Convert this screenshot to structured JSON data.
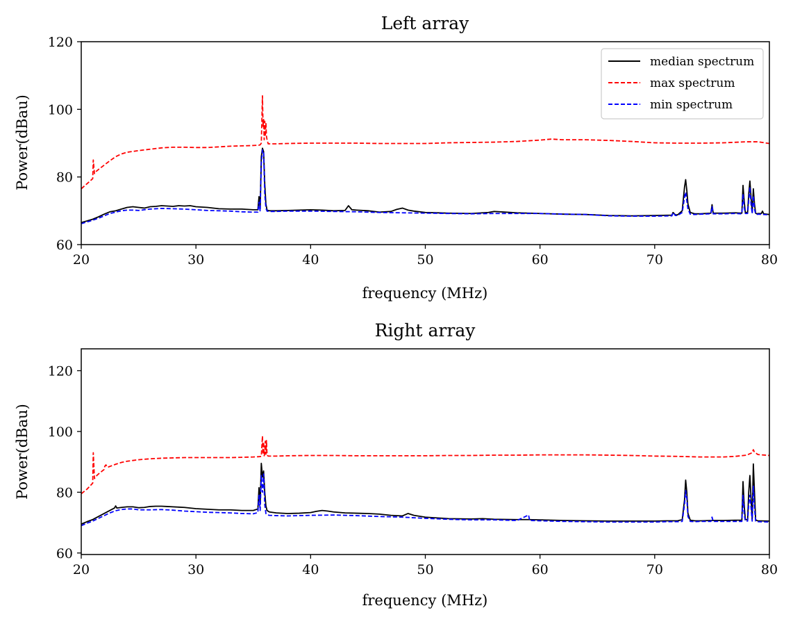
{
  "chart_data": [
    {
      "type": "line",
      "title": "Left array",
      "xlabel": "frequency (MHz)",
      "ylabel": "Power(dBau)",
      "xlim": [
        20,
        80
      ],
      "ylim": [
        60,
        120
      ],
      "xticks": [
        "20",
        "30",
        "40",
        "50",
        "60",
        "70",
        "80"
      ],
      "yticks": [
        "60",
        "80",
        "100",
        "120"
      ],
      "grid": false,
      "legend": "top-right",
      "series": [
        {
          "name": "median spectrum",
          "color": "#000000",
          "style": "solid",
          "x": [
            20,
            20.5,
            21,
            21.5,
            22,
            22.5,
            23,
            23.5,
            24,
            24.5,
            25,
            25.5,
            26,
            26.5,
            27,
            27.5,
            28,
            28.5,
            29,
            29.5,
            30,
            31,
            32,
            33,
            34,
            35,
            35.4,
            35.5,
            35.6,
            35.7,
            35.8,
            35.9,
            36,
            36.1,
            36.2,
            36.4,
            37,
            38,
            39,
            40,
            41,
            42,
            43,
            43.3,
            43.6,
            44,
            45,
            46,
            47,
            47.5,
            48,
            48.5,
            49,
            50,
            52,
            54,
            55.5,
            56,
            58,
            59,
            60,
            62,
            64,
            66,
            68,
            70,
            71.5,
            71.6,
            71.8,
            72,
            72.4,
            72.6,
            72.7,
            72.8,
            72.9,
            73.1,
            73.5,
            74,
            74.9,
            75,
            75.1,
            76,
            77,
            77.6,
            77.7,
            77.8,
            77.9,
            78.1,
            78.2,
            78.3,
            78.4,
            78.5,
            78.6,
            78.7,
            78.8,
            78.9,
            79,
            79.3,
            79.4,
            79.5,
            80
          ],
          "y": [
            66.5,
            67,
            67.5,
            68.2,
            69,
            69.7,
            70,
            70.5,
            71,
            71.2,
            71,
            70.8,
            71.2,
            71.3,
            71.5,
            71.4,
            71.3,
            71.5,
            71.4,
            71.5,
            71.2,
            71,
            70.6,
            70.5,
            70.5,
            70.3,
            70.3,
            74.2,
            70.5,
            86,
            88.5,
            87.5,
            78,
            72,
            70.2,
            70,
            70,
            70.1,
            70.2,
            70.3,
            70.2,
            70,
            70.1,
            71.5,
            70.3,
            70.2,
            70,
            69.6,
            69.8,
            70.4,
            70.8,
            70.2,
            69.9,
            69.5,
            69.3,
            69.2,
            69.5,
            69.8,
            69.4,
            69.3,
            69.2,
            69,
            68.9,
            68.6,
            68.5,
            68.6,
            68.7,
            69.5,
            68.8,
            68.8,
            70,
            77,
            79.2,
            76,
            72,
            69.5,
            69.1,
            69.1,
            69.3,
            71.8,
            69.3,
            69.3,
            69.4,
            69.3,
            77.5,
            73,
            69.5,
            69.5,
            75,
            78.8,
            74,
            69.5,
            76.5,
            72,
            69.3,
            69.1,
            69.2,
            69.2,
            69.9,
            69.1,
            68.9
          ]
        },
        {
          "name": "max spectrum",
          "color": "#ff0000",
          "style": "dashed",
          "x": [
            20,
            20.5,
            21,
            21.05,
            21.15,
            21.25,
            21.5,
            22,
            22.5,
            23,
            23.5,
            24,
            25,
            26,
            27,
            28,
            29,
            30,
            31,
            32,
            33,
            34,
            35,
            35.5,
            35.6,
            35.7,
            35.8,
            35.85,
            35.9,
            35.95,
            36,
            36.05,
            36.1,
            36.15,
            36.2,
            36.3,
            37,
            38,
            40,
            42,
            44,
            46,
            48,
            50,
            52,
            54,
            56,
            58,
            60,
            61,
            62,
            64,
            66,
            68,
            70,
            72,
            74,
            76,
            78,
            79,
            80
          ],
          "y": [
            76.5,
            78,
            79.5,
            85,
            81,
            81.5,
            82.2,
            83.5,
            84.8,
            86,
            86.8,
            87.3,
            87.8,
            88.2,
            88.6,
            88.8,
            88.8,
            88.7,
            88.7,
            88.9,
            89.1,
            89.2,
            89.3,
            89.4,
            89.5,
            90,
            104,
            95,
            97,
            91,
            96.5,
            92,
            96,
            92,
            91,
            89.8,
            89.8,
            89.9,
            90,
            90,
            90,
            89.9,
            89.9,
            89.9,
            90.1,
            90.2,
            90.3,
            90.5,
            90.9,
            91.2,
            91,
            91,
            90.8,
            90.5,
            90.1,
            90,
            90,
            90.1,
            90.4,
            90.4,
            89.9
          ]
        },
        {
          "name": "min spectrum",
          "color": "#0000ff",
          "style": "dashed",
          "x": [
            20,
            20.5,
            21,
            21.5,
            22,
            22.5,
            23,
            23.5,
            24,
            24.5,
            25,
            26,
            27,
            28,
            29,
            30,
            31,
            32,
            33,
            34,
            35,
            35.4,
            35.5,
            35.6,
            35.7,
            35.8,
            35.9,
            36,
            36.1,
            36.2,
            36.4,
            37,
            38,
            40,
            42,
            44,
            46,
            48,
            50,
            52,
            54,
            56,
            58,
            60,
            62,
            64,
            66,
            68,
            70,
            71.5,
            71.6,
            71.8,
            72,
            72.4,
            72.6,
            72.7,
            72.8,
            72.9,
            73.1,
            73.5,
            74,
            74.9,
            75,
            75.1,
            76,
            77,
            77.6,
            77.7,
            77.8,
            77.9,
            78.1,
            78.2,
            78.3,
            78.4,
            78.5,
            78.6,
            78.7,
            78.8,
            78.9,
            79,
            80
          ],
          "y": [
            66.2,
            66.7,
            67.2,
            67.8,
            68.5,
            69.2,
            69.6,
            70,
            70.2,
            70.2,
            70.1,
            70.5,
            70.7,
            70.6,
            70.5,
            70.3,
            70.1,
            70,
            69.9,
            69.7,
            69.6,
            69.6,
            72.5,
            69.8,
            84,
            88,
            87.5,
            75,
            70.8,
            69.9,
            69.8,
            69.8,
            69.9,
            69.9,
            69.8,
            69.7,
            69.5,
            69.4,
            69.3,
            69.2,
            69.1,
            69.2,
            69.2,
            69.2,
            69,
            68.9,
            68.5,
            68.4,
            68.4,
            68.5,
            69.5,
            68.6,
            68.6,
            69.5,
            74,
            75.5,
            73,
            70.5,
            69,
            68.9,
            69,
            69.1,
            71.2,
            69.1,
            69.1,
            69.2,
            69.1,
            75,
            71,
            69.2,
            69.2,
            73,
            77,
            72,
            69.2,
            74.5,
            70.5,
            69.1,
            68.9,
            69,
            68.8
          ]
        }
      ]
    },
    {
      "type": "line",
      "title": "Right array",
      "xlabel": "frequency (MHz)",
      "ylabel": "Power(dBau)",
      "xlim": [
        20,
        80
      ],
      "ylim": [
        59.5,
        127.2
      ],
      "xticks": [
        "20",
        "30",
        "40",
        "50",
        "60",
        "70",
        "80"
      ],
      "yticks": [
        "60",
        "80",
        "100",
        "120"
      ],
      "grid": false,
      "legend": "none",
      "series": [
        {
          "name": "median spectrum",
          "color": "#000000",
          "style": "solid",
          "x": [
            20,
            20.5,
            21,
            21.5,
            22,
            22.5,
            22.9,
            23,
            23.1,
            23.5,
            24,
            24.5,
            25,
            25.5,
            26,
            26.5,
            27,
            27.5,
            28,
            28.5,
            29,
            30,
            31,
            32,
            33,
            34,
            35,
            35.4,
            35.5,
            35.6,
            35.7,
            35.8,
            35.9,
            36,
            36.1,
            36.2,
            36.4,
            37,
            38,
            39,
            40,
            40.5,
            41,
            41.5,
            42,
            43,
            44,
            45,
            46,
            47,
            48,
            48.5,
            49,
            50,
            52,
            54,
            55,
            56,
            58,
            59,
            60,
            62,
            64,
            66,
            68,
            70,
            71,
            72,
            72.4,
            72.6,
            72.7,
            72.8,
            72.9,
            73.1,
            73.5,
            74,
            75,
            76,
            77,
            77.6,
            77.7,
            77.8,
            77.9,
            78.1,
            78.2,
            78.3,
            78.4,
            78.5,
            78.6,
            78.7,
            78.8,
            78.9,
            79,
            80
          ],
          "y": [
            69.5,
            70.3,
            71,
            72,
            73,
            74,
            74.8,
            75.5,
            74.8,
            75,
            75.2,
            75.2,
            74.9,
            75,
            75.3,
            75.4,
            75.4,
            75.3,
            75.2,
            75.1,
            75,
            74.6,
            74.4,
            74.2,
            74.2,
            74,
            74,
            74.5,
            81.5,
            76,
            89.5,
            85,
            87,
            80,
            75.5,
            74,
            73.5,
            73.2,
            73,
            73.1,
            73.3,
            73.7,
            74,
            73.8,
            73.5,
            73.2,
            73.1,
            73,
            72.8,
            72.4,
            72.2,
            73,
            72.4,
            71.8,
            71.3,
            71.2,
            71.3,
            71.1,
            71,
            71,
            70.9,
            70.7,
            70.6,
            70.5,
            70.5,
            70.5,
            70.6,
            70.6,
            71,
            77.5,
            84,
            80,
            73,
            70.8,
            70.6,
            70.6,
            70.7,
            70.7,
            70.8,
            70.8,
            83.5,
            76,
            71,
            71,
            80,
            85.5,
            78,
            71,
            89.3,
            80,
            71,
            70.7,
            70.6,
            70.5
          ]
        },
        {
          "name": "max spectrum",
          "color": "#ff0000",
          "style": "dashed",
          "x": [
            20,
            20.5,
            21,
            21.05,
            21.15,
            21.3,
            21.5,
            22,
            22.05,
            22.15,
            22.3,
            22.5,
            23,
            23.5,
            24,
            25,
            26,
            27,
            28,
            29,
            30,
            31,
            32,
            33,
            34,
            35,
            35.5,
            35.7,
            35.8,
            35.85,
            35.9,
            35.95,
            36,
            36.05,
            36.1,
            36.15,
            36.2,
            36.3,
            37,
            38,
            40,
            42,
            44,
            46,
            48,
            50,
            52,
            54,
            56,
            58,
            60,
            62,
            64,
            66,
            68,
            70,
            72,
            74,
            76,
            77,
            78,
            78.5,
            78.6,
            78.7,
            79,
            80
          ],
          "y": [
            79.5,
            81,
            83,
            93,
            84.5,
            85.3,
            86,
            87.5,
            88.5,
            89,
            88.2,
            88.5,
            89.2,
            89.8,
            90.2,
            90.7,
            91,
            91.2,
            91.3,
            91.4,
            91.4,
            91.4,
            91.4,
            91.4,
            91.5,
            91.6,
            91.7,
            91.8,
            98.5,
            92.5,
            96.5,
            92,
            93,
            96.8,
            92.5,
            97,
            92.2,
            91.9,
            91.9,
            92,
            92.1,
            92.1,
            92,
            92,
            92,
            92,
            92.1,
            92.1,
            92.2,
            92.2,
            92.3,
            92.3,
            92.3,
            92.2,
            92.1,
            91.9,
            91.8,
            91.6,
            91.6,
            91.8,
            92.2,
            93,
            94,
            93.2,
            92.4,
            92.1
          ]
        },
        {
          "name": "min spectrum",
          "color": "#0000ff",
          "style": "dashed",
          "x": [
            20,
            20.5,
            21,
            21.5,
            22,
            22.5,
            23,
            23.5,
            24,
            24.5,
            25,
            26,
            27,
            28,
            29,
            30,
            31,
            32,
            33,
            34,
            35,
            35.4,
            35.5,
            35.6,
            35.7,
            35.8,
            35.9,
            36,
            36.1,
            36.2,
            36.4,
            37,
            38,
            40,
            42,
            44,
            46,
            48,
            50,
            52,
            54,
            56,
            58,
            59,
            59.1,
            60,
            62,
            64,
            66,
            68,
            70,
            71,
            72,
            72.4,
            72.6,
            72.7,
            72.8,
            72.9,
            73.1,
            73.5,
            74,
            74.9,
            75,
            75.1,
            76,
            77,
            77.6,
            77.7,
            77.8,
            77.9,
            78.1,
            78.2,
            78.3,
            78.4,
            78.5,
            78.6,
            78.7,
            78.8,
            78.9,
            79,
            80
          ],
          "y": [
            69,
            69.8,
            70.5,
            71.4,
            72.3,
            73.2,
            73.9,
            74.3,
            74.5,
            74.5,
            74.2,
            74.2,
            74.3,
            74.1,
            73.8,
            73.6,
            73.4,
            73.3,
            73.2,
            73,
            72.9,
            73.3,
            79,
            74,
            85.5,
            80,
            86,
            76,
            73,
            72.6,
            72.4,
            72.3,
            72.2,
            72.4,
            72.5,
            72.3,
            72,
            71.8,
            71.4,
            71.1,
            70.9,
            70.9,
            70.7,
            72.5,
            70.7,
            70.6,
            70.4,
            70.3,
            70.2,
            70.2,
            70.2,
            70.3,
            70.3,
            70.4,
            76,
            80.5,
            78,
            72,
            70.4,
            70.3,
            70.4,
            70.4,
            71.8,
            70.4,
            70.4,
            70.4,
            70.4,
            79,
            73,
            70.5,
            70.5,
            76,
            79,
            75,
            70.5,
            82,
            75,
            70.5,
            70.4,
            70.3,
            70.2
          ]
        }
      ]
    }
  ]
}
